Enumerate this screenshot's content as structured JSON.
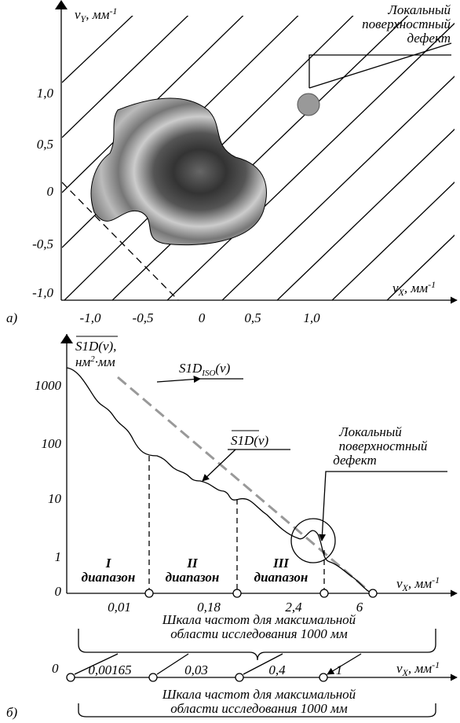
{
  "panel_a": {
    "label": "а)",
    "y_axis": {
      "base": "ν",
      "sub": "Y",
      "unit": ", мм",
      "sup": "-1"
    },
    "x_axis": {
      "base": "ν",
      "sub": "X",
      "unit": ", мм",
      "sup": "-1"
    },
    "yticks": [
      "1,0",
      "0,5",
      "0",
      "-0,5",
      "-1,0"
    ],
    "xticks": [
      "-1,0",
      "-0,5",
      "0",
      "0,5",
      "1,0"
    ],
    "defect_label": [
      "Локальный",
      "поверхностный",
      "дефект"
    ]
  },
  "panel_b": {
    "label": "б)",
    "y_axis": {
      "name": "S1D(ν)",
      "comma": ",",
      "unit": "нм",
      "sup": "2",
      "unit2": "·мм"
    },
    "yticks": [
      "1000",
      "100",
      "10",
      "1",
      "0"
    ],
    "x_axis": {
      "base": "ν",
      "sub": "X",
      "unit": ", мм",
      "sup": "-1"
    },
    "iso_label": {
      "base": "S1D",
      "sub": "ISO",
      "arg": "(ν)"
    },
    "curve_label": {
      "name": "S1D",
      "arg": "(ν)"
    },
    "defect_label": [
      "Локальный",
      "поверхностный",
      "дефект"
    ],
    "ranges": [
      {
        "num": "I",
        "word": "диапазон"
      },
      {
        "num": "II",
        "word": "диапазон"
      },
      {
        "num": "III",
        "word": "диапазон"
      }
    ],
    "xticks": [
      "0,01",
      "0,18",
      "2,4",
      "6"
    ],
    "scale1": [
      "Шкала частот для максимальной",
      "области исследования 1000 мм"
    ],
    "axis2_zero": "0",
    "xticks2": [
      "0,00165",
      "0,03",
      "0,4",
      "1"
    ],
    "scale2": [
      "Шкала частот для максимальной",
      "области исследования 1000 мм"
    ]
  }
}
